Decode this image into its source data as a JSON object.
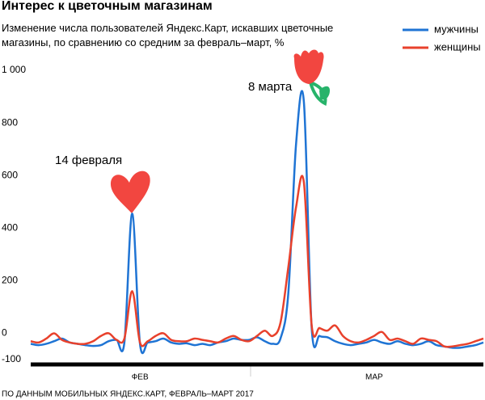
{
  "chart_data": {
    "type": "line",
    "title": "Интерес к цветочным магазинам",
    "subtitle": "Изменение числа пользователей Яндекс.Карт, искавших цветочные магазины, по сравнению со средним за февраль–март, %",
    "source": "ПО ДАННЫМ МОБИЛЬНЫХ ЯНДЕКС.КАРТ, ФЕВРАЛЬ–МАРТ 2017",
    "annotations": [
      "14 февраля",
      "8 марта"
    ],
    "categories": [
      null,
      null,
      null,
      null,
      null,
      null,
      null,
      null,
      null,
      null,
      null,
      null,
      null,
      null,
      "ФЕВ",
      null,
      null,
      null,
      null,
      null,
      null,
      null,
      null,
      null,
      null,
      null,
      null,
      null,
      null,
      null,
      null,
      null,
      null,
      null,
      null,
      null,
      null,
      null,
      null,
      null,
      null,
      null,
      null,
      null,
      "МАР",
      null,
      null,
      null,
      null,
      null,
      null,
      null,
      null,
      null,
      null,
      null,
      null,
      null,
      null
    ],
    "series": [
      {
        "name": "мужчины",
        "color": "#1f74d4",
        "values": [
          -40,
          -45,
          -40,
          -30,
          -20,
          -35,
          -40,
          -45,
          -48,
          -45,
          -30,
          -25,
          -35,
          455,
          -40,
          -35,
          -30,
          -20,
          -35,
          -40,
          -38,
          -45,
          -40,
          -45,
          -35,
          -30,
          -20,
          -25,
          -25,
          -15,
          -30,
          -40,
          -20,
          150,
          720,
          880,
          20,
          -10,
          -15,
          -30,
          -40,
          -45,
          -40,
          -35,
          -25,
          -35,
          -40,
          -30,
          -40,
          -45,
          -40,
          -30,
          -45,
          -50,
          -55,
          -55,
          -50,
          -45,
          -35
        ]
      },
      {
        "name": "женщины",
        "color": "#e8412c",
        "values": [
          -30,
          -35,
          -20,
          0,
          -25,
          -35,
          -40,
          -40,
          -30,
          -10,
          0,
          -25,
          -20,
          160,
          -35,
          -30,
          -10,
          0,
          -25,
          -30,
          -30,
          -20,
          -25,
          -30,
          -35,
          -20,
          -10,
          -25,
          -30,
          -10,
          10,
          -10,
          40,
          250,
          480,
          574,
          30,
          20,
          10,
          30,
          -10,
          -30,
          -35,
          -25,
          -10,
          5,
          -25,
          -20,
          -30,
          -40,
          -20,
          -25,
          -30,
          -50,
          -50,
          -45,
          -40,
          -30,
          -20
        ]
      }
    ],
    "ylim": [
      -100,
      1000
    ],
    "yticks": [
      {
        "value": 1000,
        "label": "1 000"
      },
      800,
      600,
      400,
      200,
      0,
      -100
    ],
    "grid": false,
    "legend": "top-right"
  }
}
